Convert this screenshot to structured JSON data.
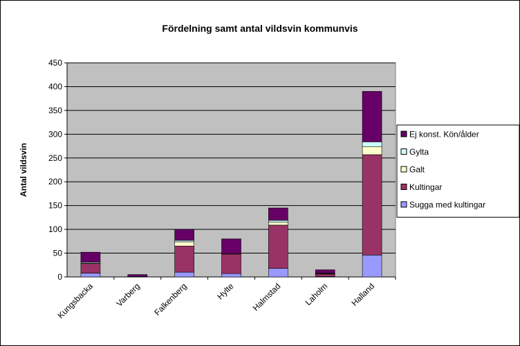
{
  "chart_data": {
    "type": "stacked_bar",
    "title": "Fördelning samt antal vildsvin kommunvis",
    "y_label": "Antal vildsvin",
    "categories": [
      "Kungsbacka",
      "Varberg",
      "Falkenberg",
      "Hylte",
      "Halmstad",
      "Laholm",
      "Halland"
    ],
    "series": [
      {
        "name": "Sugga med kultingar",
        "color": "#9999ff",
        "values": [
          8,
          0,
          10,
          7,
          18,
          1,
          46
        ]
      },
      {
        "name": "Kultingar",
        "color": "#993366",
        "values": [
          20,
          1,
          55,
          41,
          91,
          5,
          211
        ]
      },
      {
        "name": "Galt",
        "color": "#ffffcc",
        "values": [
          1,
          0,
          9,
          1,
          6,
          1,
          17
        ]
      },
      {
        "name": "Gylta",
        "color": "#ccffff",
        "values": [
          2,
          0,
          3,
          0,
          4,
          1,
          10
        ]
      },
      {
        "name": "Ej konst. Kön/ålder",
        "color": "#660066",
        "values": [
          21,
          4,
          23,
          31,
          26,
          7,
          106
        ]
      }
    ],
    "ylim": [
      0,
      450
    ],
    "yticks": [
      0,
      50,
      100,
      150,
      200,
      250,
      300,
      350,
      400,
      450
    ],
    "grid": true,
    "legend": "right",
    "plot_background": "#c0c0c0"
  }
}
